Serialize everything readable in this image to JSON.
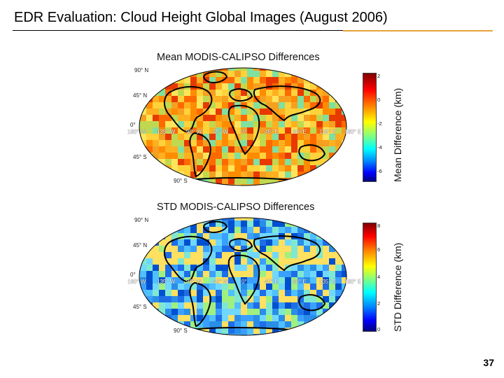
{
  "slide": {
    "title": "EDR Evaluation: Cloud Height Global Images (August 2006)",
    "page_number": "37"
  },
  "maps": [
    {
      "id": "mean",
      "title": "Mean MODIS-CALIPSO Differences",
      "colorbar_label": "Mean Difference (km)",
      "colorbar_ticks": [
        "2",
        "0",
        "-2",
        "-4",
        "-6"
      ],
      "colorbar_range": [
        -7,
        2
      ],
      "colormap": "jet-reversed",
      "lat_labels": [
        "90° N",
        "45° N",
        "0°",
        "45° S",
        "90° S"
      ],
      "lon_labels": [
        "180° W",
        "135° W",
        "90° W",
        "45° W",
        "0°",
        "45° E",
        "90° E",
        "135° E",
        "180° E"
      ]
    },
    {
      "id": "std",
      "title": "STD MODIS-CALIPSO Differences",
      "colorbar_label": "STD Difference (km)",
      "colorbar_ticks": [
        "8",
        "6",
        "4",
        "2",
        "0"
      ],
      "colorbar_range": [
        0,
        8
      ],
      "colormap": "jet",
      "lat_labels": [
        "90° N",
        "45° N",
        "0°",
        "45° S",
        "90° S"
      ],
      "lon_labels": [
        "180° W",
        "135° W",
        "90° W",
        "45° W",
        "0°",
        "45° E",
        "90° E",
        "135° E",
        "180° E"
      ]
    }
  ]
}
